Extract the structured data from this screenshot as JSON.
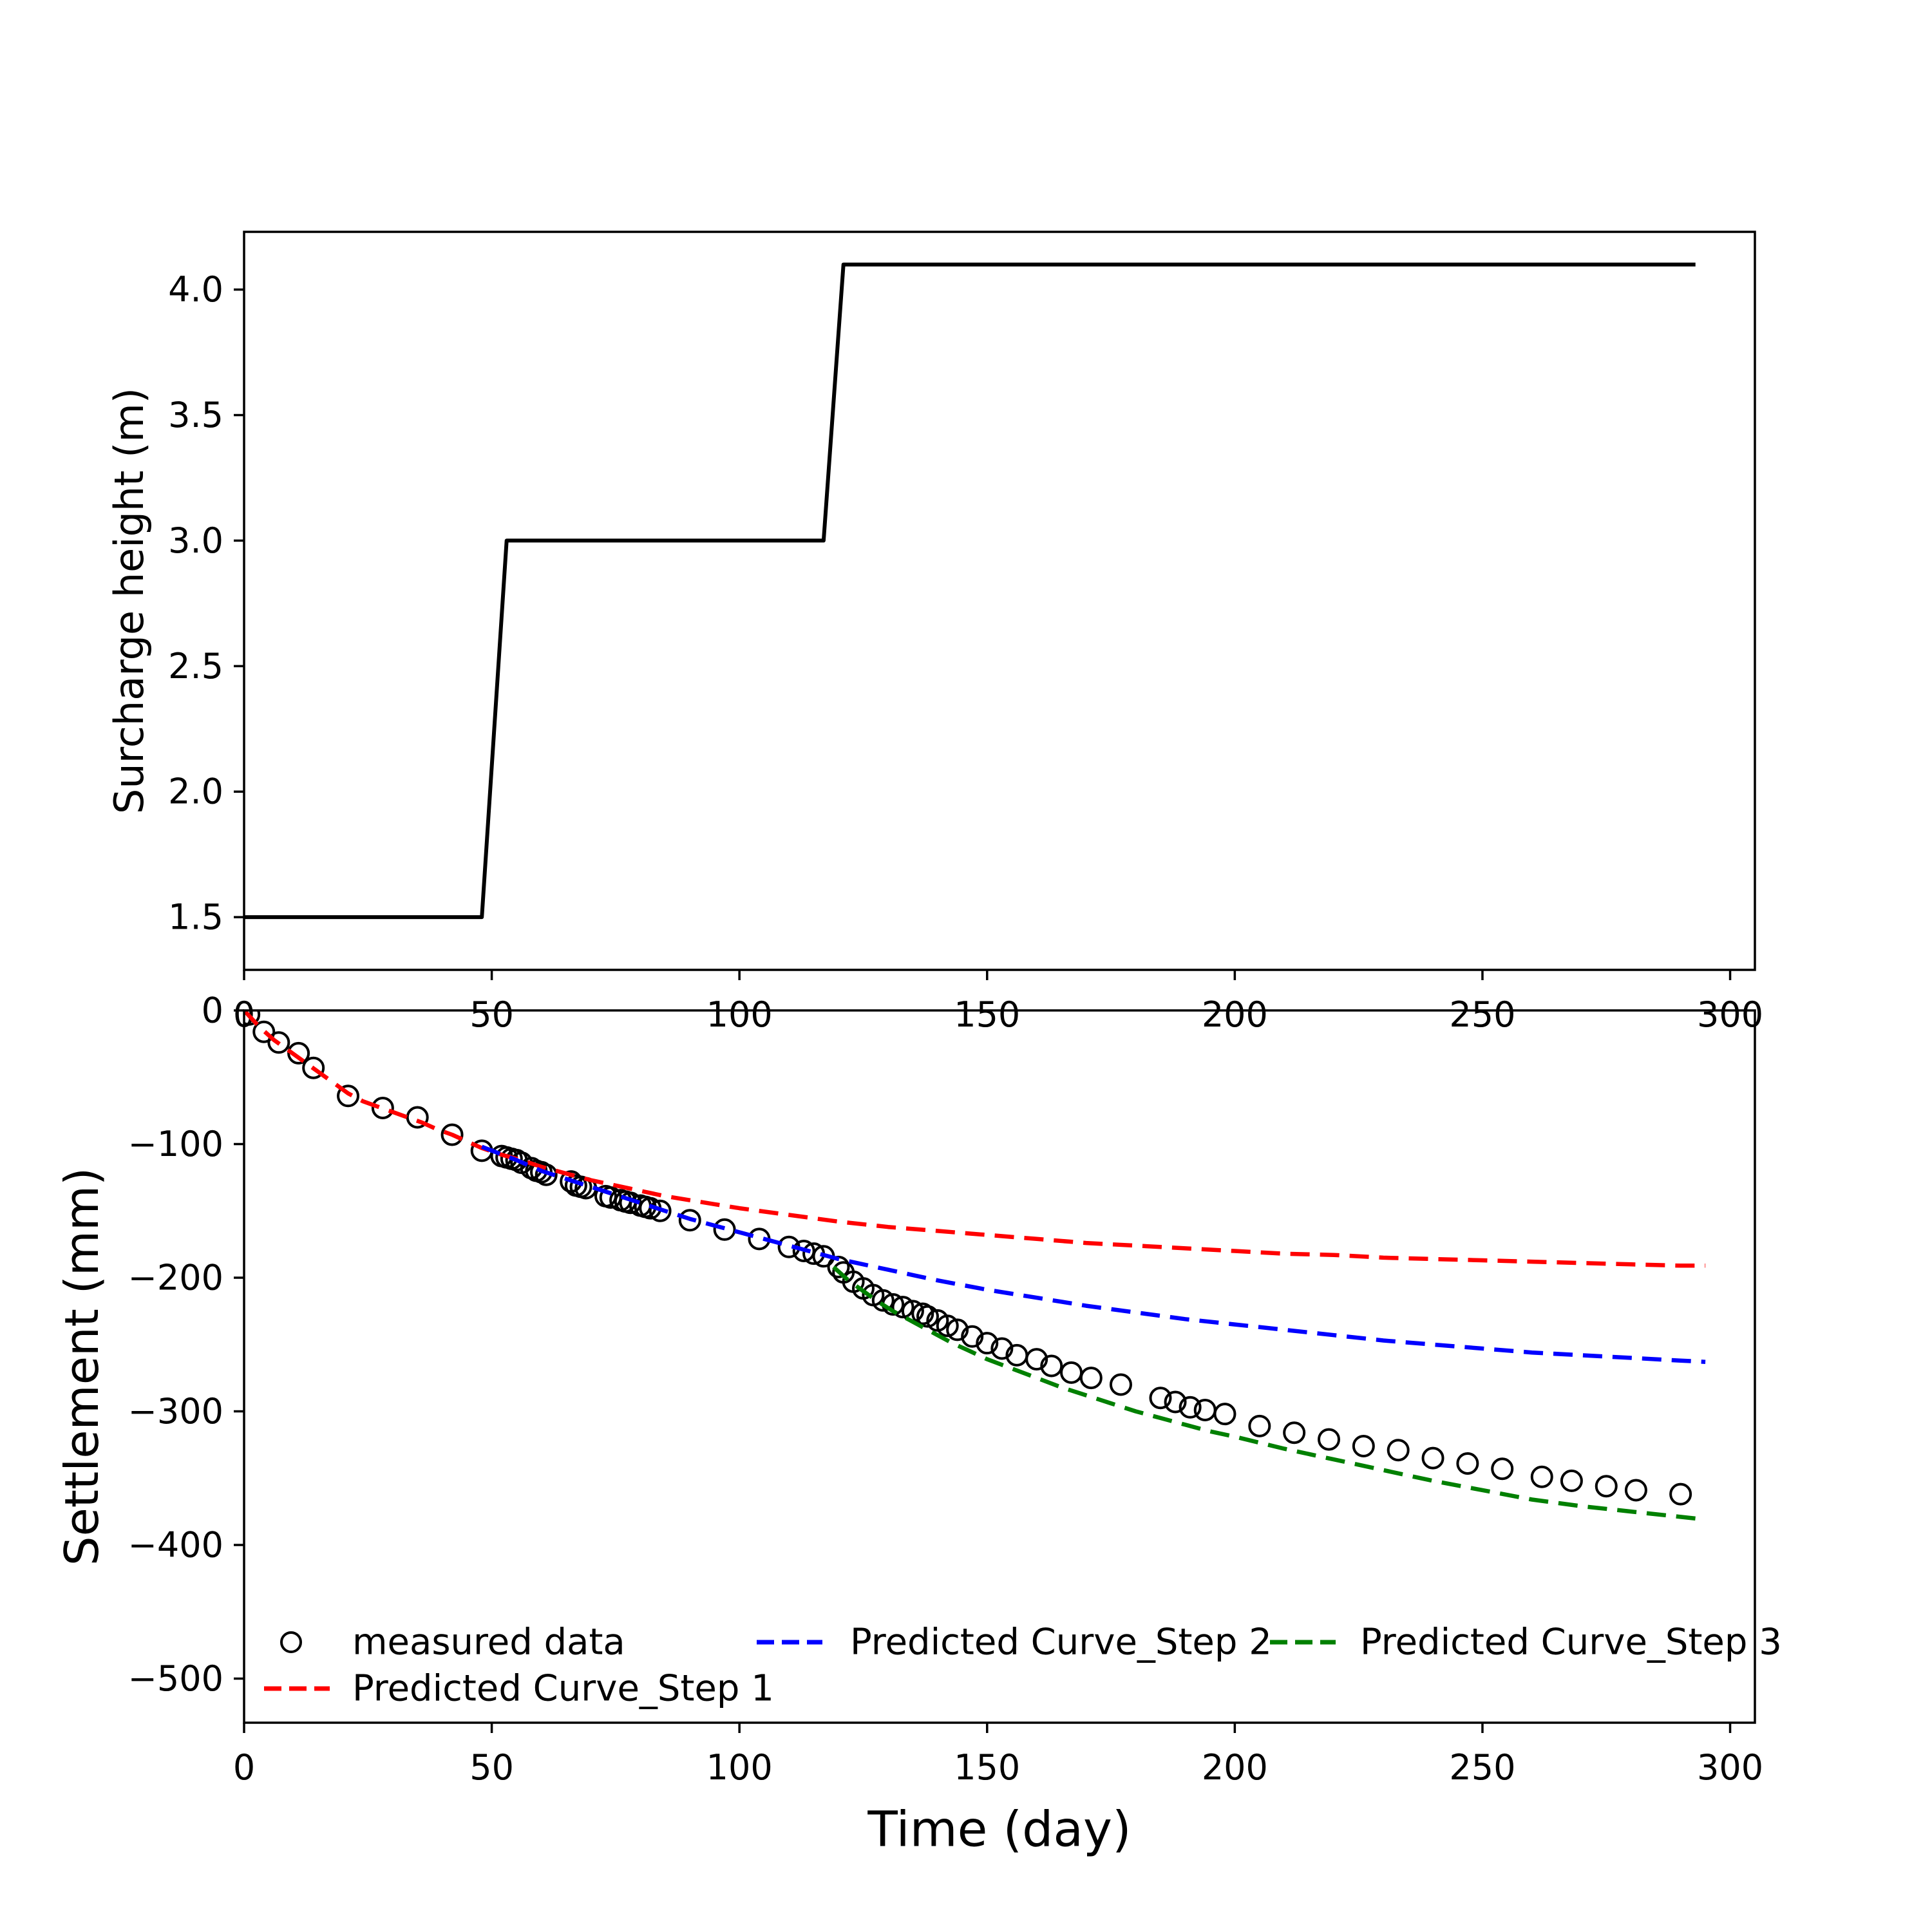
{
  "figure": {
    "background": "#ffffff",
    "xlabel": "Time (day)"
  },
  "colors": {
    "measured": "#000000",
    "step1": "#ff0000",
    "step2": "#0000ff",
    "step3": "#008000",
    "surcharge_line": "#000000"
  },
  "chart_data": [
    {
      "type": "line",
      "title": "",
      "xlabel": "",
      "ylabel": "Surcharge height (m)",
      "xlim": [
        0,
        305
      ],
      "ylim": [
        1.29,
        4.23
      ],
      "xticks": [
        0,
        50,
        100,
        150,
        200,
        250,
        300
      ],
      "xticklabels": [
        "0",
        "50",
        "100",
        "150",
        "200",
        "250",
        "300"
      ],
      "yticks": [
        1.5,
        2.0,
        2.5,
        3.0,
        3.5,
        4.0
      ],
      "yticklabels": [
        "1.5",
        "2.0",
        "2.5",
        "3.0",
        "3.5",
        "4.0"
      ],
      "grid": false,
      "legend": "none",
      "series": [
        {
          "name": "surcharge height",
          "style": "solid",
          "color": "#000000",
          "points": [
            [
              0,
              1.5
            ],
            [
              48,
              1.5
            ],
            [
              53,
              3.0
            ],
            [
              117,
              3.0
            ],
            [
              121,
              4.1
            ],
            [
              293,
              4.1
            ]
          ]
        }
      ]
    },
    {
      "type": "scatter",
      "title": "",
      "xlabel": "Time (day)",
      "ylabel": "Settlement (mm)",
      "xlim": [
        0,
        305
      ],
      "ylim": [
        -533,
        0
      ],
      "xticks": [
        0,
        50,
        100,
        150,
        200,
        250,
        300
      ],
      "xticklabels": [
        "0",
        "50",
        "100",
        "150",
        "200",
        "250",
        "300"
      ],
      "yticks": [
        0,
        -100,
        -200,
        -300,
        -400,
        -500
      ],
      "yticklabels": [
        "0",
        "−100",
        "−200",
        "−300",
        "−400",
        "−500"
      ],
      "grid": false,
      "legend": "lower left, 3 columns",
      "series": [
        {
          "name": "measured data",
          "marker": "circle",
          "style": "none",
          "color": "#000000",
          "points": [
            [
              1,
              -3
            ],
            [
              4,
              -16
            ],
            [
              7,
              -24
            ],
            [
              11,
              -32
            ],
            [
              14,
              -43
            ],
            [
              21,
              -64
            ],
            [
              28,
              -73
            ],
            [
              35,
              -80
            ],
            [
              42,
              -93
            ],
            [
              48,
              -105
            ],
            [
              52,
              -109
            ],
            [
              53,
              -110
            ],
            [
              54,
              -111
            ],
            [
              55,
              -112
            ],
            [
              56,
              -114
            ],
            [
              58,
              -118
            ],
            [
              59,
              -120
            ],
            [
              60,
              -121
            ],
            [
              61,
              -123
            ],
            [
              66,
              -128
            ],
            [
              67,
              -131
            ],
            [
              68,
              -132
            ],
            [
              69,
              -133
            ],
            [
              73,
              -139
            ],
            [
              74,
              -140
            ],
            [
              76,
              -142
            ],
            [
              77,
              -143
            ],
            [
              78,
              -144
            ],
            [
              80,
              -146
            ],
            [
              81,
              -147
            ],
            [
              82,
              -148
            ],
            [
              84,
              -150
            ],
            [
              90,
              -157
            ],
            [
              97,
              -164
            ],
            [
              104,
              -171
            ],
            [
              110,
              -177
            ],
            [
              113,
              -180
            ],
            [
              115,
              -182
            ],
            [
              117,
              -184
            ],
            [
              120,
              -192
            ],
            [
              121,
              -196
            ],
            [
              123,
              -203
            ],
            [
              125,
              -208
            ],
            [
              127,
              -213
            ],
            [
              129,
              -217
            ],
            [
              131,
              -220
            ],
            [
              133,
              -222
            ],
            [
              135,
              -225
            ],
            [
              137,
              -227
            ],
            [
              138,
              -229
            ],
            [
              140,
              -232
            ],
            [
              142,
              -236
            ],
            [
              144,
              -239
            ],
            [
              147,
              -244
            ],
            [
              150,
              -249
            ],
            [
              153,
              -253
            ],
            [
              156,
              -258
            ],
            [
              160,
              -261
            ],
            [
              163,
              -266
            ],
            [
              167,
              -271
            ],
            [
              171,
              -275
            ],
            [
              177,
              -280
            ],
            [
              185,
              -290
            ],
            [
              188,
              -293
            ],
            [
              191,
              -297
            ],
            [
              194,
              -299
            ],
            [
              198,
              -302
            ],
            [
              205,
              -311
            ],
            [
              212,
              -316
            ],
            [
              219,
              -321
            ],
            [
              226,
              -326
            ],
            [
              233,
              -329
            ],
            [
              240,
              -335
            ],
            [
              247,
              -339
            ],
            [
              254,
              -343
            ],
            [
              262,
              -349
            ],
            [
              268,
              -352
            ],
            [
              275,
              -356
            ],
            [
              281,
              -359
            ],
            [
              290,
              -362
            ]
          ]
        },
        {
          "name": "Predicted Curve_Step 1",
          "marker": "none",
          "style": "dashed",
          "color": "#ff0000",
          "points": [
            [
              0,
              0
            ],
            [
              3,
              -12
            ],
            [
              6,
              -22
            ],
            [
              9,
              -30
            ],
            [
              12,
              -38
            ],
            [
              15,
              -46
            ],
            [
              18,
              -54
            ],
            [
              21,
              -62
            ],
            [
              24,
              -68
            ],
            [
              27,
              -72
            ],
            [
              30,
              -76
            ],
            [
              33,
              -80
            ],
            [
              36,
              -84
            ],
            [
              39,
              -89
            ],
            [
              42,
              -93
            ],
            [
              45,
              -98
            ],
            [
              48,
              -103
            ],
            [
              52,
              -108
            ],
            [
              56,
              -112
            ],
            [
              60,
              -117
            ],
            [
              65,
              -122
            ],
            [
              70,
              -127
            ],
            [
              75,
              -131
            ],
            [
              80,
              -135
            ],
            [
              85,
              -139
            ],
            [
              90,
              -142
            ],
            [
              95,
              -145
            ],
            [
              100,
              -148
            ],
            [
              110,
              -153
            ],
            [
              120,
              -158
            ],
            [
              130,
              -162
            ],
            [
              140,
              -165
            ],
            [
              150,
              -168
            ],
            [
              160,
              -171
            ],
            [
              170,
              -174
            ],
            [
              180,
              -176
            ],
            [
              190,
              -178
            ],
            [
              200,
              -180
            ],
            [
              210,
              -182
            ],
            [
              220,
              -183
            ],
            [
              230,
              -185
            ],
            [
              240,
              -186
            ],
            [
              250,
              -187
            ],
            [
              260,
              -188
            ],
            [
              270,
              -189
            ],
            [
              280,
              -190
            ],
            [
              290,
              -191
            ],
            [
              295,
              -191
            ]
          ]
        },
        {
          "name": "Predicted Curve_Step 2",
          "marker": "none",
          "style": "dashed",
          "color": "#0000ff",
          "points": [
            [
              48,
              -102
            ],
            [
              55,
              -112
            ],
            [
              60,
              -120
            ],
            [
              65,
              -126
            ],
            [
              70,
              -132
            ],
            [
              75,
              -138
            ],
            [
              80,
              -144
            ],
            [
              85,
              -150
            ],
            [
              90,
              -156
            ],
            [
              95,
              -161
            ],
            [
              100,
              -166
            ],
            [
              105,
              -171
            ],
            [
              110,
              -176
            ],
            [
              115,
              -181
            ],
            [
              120,
              -186
            ],
            [
              125,
              -190
            ],
            [
              130,
              -194
            ],
            [
              135,
              -198
            ],
            [
              140,
              -202
            ],
            [
              150,
              -209
            ],
            [
              160,
              -215
            ],
            [
              170,
              -221
            ],
            [
              180,
              -226
            ],
            [
              190,
              -231
            ],
            [
              200,
              -235
            ],
            [
              210,
              -239
            ],
            [
              220,
              -243
            ],
            [
              230,
              -247
            ],
            [
              240,
              -250
            ],
            [
              250,
              -253
            ],
            [
              260,
              -256
            ],
            [
              270,
              -258
            ],
            [
              280,
              -260
            ],
            [
              290,
              -262
            ],
            [
              295,
              -263
            ]
          ]
        },
        {
          "name": "Predicted Curve_Step 3",
          "marker": "none",
          "style": "dashed",
          "color": "#008000",
          "points": [
            [
              119,
              -192
            ],
            [
              122,
              -202
            ],
            [
              125,
              -210
            ],
            [
              128,
              -218
            ],
            [
              131,
              -225
            ],
            [
              134,
              -231
            ],
            [
              137,
              -237
            ],
            [
              140,
              -243
            ],
            [
              143,
              -249
            ],
            [
              146,
              -254
            ],
            [
              150,
              -261
            ],
            [
              155,
              -268
            ],
            [
              160,
              -275
            ],
            [
              165,
              -282
            ],
            [
              170,
              -288
            ],
            [
              175,
              -294
            ],
            [
              180,
              -300
            ],
            [
              185,
              -305
            ],
            [
              190,
              -310
            ],
            [
              195,
              -315
            ],
            [
              200,
              -319
            ],
            [
              210,
              -328
            ],
            [
              220,
              -336
            ],
            [
              230,
              -344
            ],
            [
              240,
              -352
            ],
            [
              250,
              -359
            ],
            [
              260,
              -366
            ],
            [
              270,
              -371
            ],
            [
              280,
              -375
            ],
            [
              290,
              -379
            ],
            [
              295,
              -381
            ]
          ]
        }
      ]
    }
  ],
  "legend": {
    "entries": [
      {
        "label": "measured data",
        "marker": "circle",
        "color": "#000000"
      },
      {
        "label": "Predicted Curve_Step 1",
        "marker": "dashed-line",
        "color": "#ff0000"
      },
      {
        "label": "Predicted Curve_Step 2",
        "marker": "dashed-line",
        "color": "#0000ff"
      },
      {
        "label": "Predicted Curve_Step 3",
        "marker": "dashed-line",
        "color": "#008000"
      }
    ]
  }
}
